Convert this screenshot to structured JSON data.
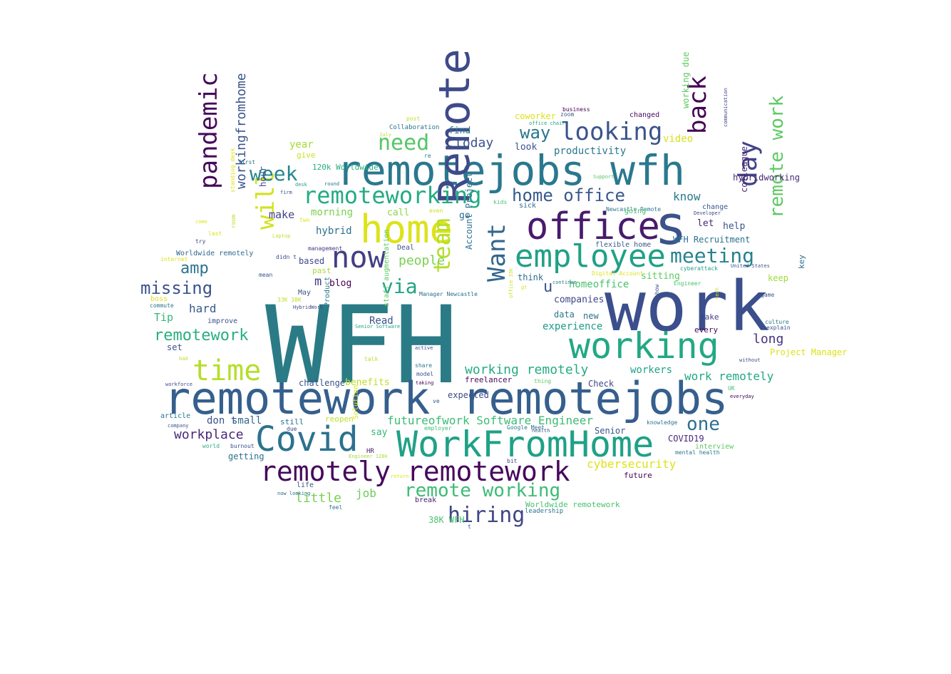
{
  "wordcloud": {
    "words": [
      {
        "text": "WFH",
        "color": "#2a7b86"
      },
      {
        "text": "work",
        "color": "#3b4f8c"
      },
      {
        "text": "remotework",
        "color": "#355f8d"
      },
      {
        "text": "remotejobs",
        "color": "#355f8d"
      },
      {
        "text": "remotejobs wfh",
        "color": "#2a788e"
      },
      {
        "text": "WorkFromHome",
        "color": "#1fa187"
      },
      {
        "text": "home",
        "color": "#dce319"
      },
      {
        "text": "Remote",
        "color": "#3e4a89"
      },
      {
        "text": "office",
        "color": "#481a6c"
      },
      {
        "text": "s",
        "color": "#3b528b"
      },
      {
        "text": "employee",
        "color": "#1fa187"
      },
      {
        "text": "working",
        "color": "#22a884"
      },
      {
        "text": "Covid",
        "color": "#2c728e"
      },
      {
        "text": "remotely remotework",
        "color": "#46085c"
      },
      {
        "text": "time",
        "color": "#b5de2b"
      },
      {
        "text": "now",
        "color": "#433e85"
      },
      {
        "text": "pandemic",
        "color": "#46095c"
      },
      {
        "text": "will",
        "color": "#d2e21b"
      },
      {
        "text": "back",
        "color": "#440154"
      },
      {
        "text": "day",
        "color": "#414487"
      },
      {
        "text": "remoteworking",
        "color": "#25ab82"
      },
      {
        "text": "looking",
        "color": "#3a548c"
      },
      {
        "text": "need",
        "color": "#56c667"
      },
      {
        "text": "Want",
        "color": "#31678e"
      },
      {
        "text": "team",
        "color": "#b5de2b"
      },
      {
        "text": "meeting",
        "color": "#26828e"
      },
      {
        "text": "remote working",
        "color": "#3dbc74"
      },
      {
        "text": "hiring",
        "color": "#3f4788"
      },
      {
        "text": "via",
        "color": "#20a386"
      },
      {
        "text": "missing",
        "color": "#3b528b"
      },
      {
        "text": "week",
        "color": "#24868e"
      },
      {
        "text": "amp",
        "color": "#2c728e"
      },
      {
        "text": "remote work",
        "color": "#5ec962"
      },
      {
        "text": "home office",
        "color": "#38598c"
      },
      {
        "text": "remotework",
        "color": "#29af7f"
      },
      {
        "text": "one",
        "color": "#2d708e"
      },
      {
        "text": "workingfromhome",
        "color": "#3a548c"
      },
      {
        "text": "way",
        "color": "#2a768e"
      },
      {
        "text": "working remotely",
        "color": "#25ab82"
      },
      {
        "text": "futureofwork Software Engineer",
        "color": "#3dbc74"
      },
      {
        "text": "u",
        "color": "#3b528b"
      },
      {
        "text": "workplace",
        "color": "#482878"
      },
      {
        "text": "cybersecurity",
        "color": "#dde318"
      },
      {
        "text": "little",
        "color": "#7ad151"
      },
      {
        "text": "people",
        "color": "#7ad151"
      },
      {
        "text": "know",
        "color": "#2a788e"
      },
      {
        "text": "long",
        "color": "#46327e"
      },
      {
        "text": "work remotely",
        "color": "#22a884"
      },
      {
        "text": "today",
        "color": "#3a548c"
      },
      {
        "text": "job",
        "color": "#6ccd5a"
      },
      {
        "text": "hard",
        "color": "#38598c"
      },
      {
        "text": "productivity",
        "color": "#2a788e"
      },
      {
        "text": "year",
        "color": "#a5db36"
      },
      {
        "text": "homeoffice",
        "color": "#4ac16d"
      },
      {
        "text": "make",
        "color": "#414487"
      },
      {
        "text": "workers",
        "color": "#20a386"
      },
      {
        "text": "hybrid",
        "color": "#2c728e"
      },
      {
        "text": "morning",
        "color": "#7ad151"
      },
      {
        "text": "don t",
        "color": "#3b528b"
      },
      {
        "text": "small",
        "color": "#31688e"
      },
      {
        "text": "experience",
        "color": "#1e9b8a"
      },
      {
        "text": "Tip",
        "color": "#35b779"
      },
      {
        "text": "call",
        "color": "#8bd646"
      },
      {
        "text": "Read",
        "color": "#3b528b"
      },
      {
        "text": "blog",
        "color": "#440154"
      },
      {
        "text": "m",
        "color": "#443b84"
      },
      {
        "text": "Check",
        "color": "#3e4989"
      },
      {
        "text": "help",
        "color": "#3a548c"
      },
      {
        "text": "find",
        "color": "#2a768e"
      },
      {
        "text": "companies",
        "color": "#3f4788"
      },
      {
        "text": "say",
        "color": "#35b779"
      },
      {
        "text": "Senior",
        "color": "#3b528b"
      },
      {
        "text": "go",
        "color": "#31688e"
      },
      {
        "text": "benefits",
        "color": "#bddf26"
      },
      {
        "text": "future",
        "color": "#440154"
      },
      {
        "text": "COVID19",
        "color": "#482878"
      },
      {
        "text": "let",
        "color": "#482878"
      },
      {
        "text": "keep",
        "color": "#a0da39"
      },
      {
        "text": "freelancer",
        "color": "#46085c"
      },
      {
        "text": "think",
        "color": "#2e6e8e"
      },
      {
        "text": "hour",
        "color": "#3e4a89"
      },
      {
        "text": "give",
        "color": "#c8e020"
      },
      {
        "text": "120k Worldwide",
        "color": "#29af7f"
      },
      {
        "text": "post",
        "color": "#bddf26"
      },
      {
        "text": "Collaboration",
        "color": "#2c728e"
      },
      {
        "text": "July",
        "color": "#bddf26"
      },
      {
        "text": "coworker",
        "color": "#dde318"
      },
      {
        "text": "business",
        "color": "#440154"
      },
      {
        "text": "zoom",
        "color": "#3a548c"
      },
      {
        "text": "office chair",
        "color": "#20a386"
      },
      {
        "text": "changed",
        "color": "#46075a"
      },
      {
        "text": "working due",
        "color": "#5ec962"
      },
      {
        "text": "video",
        "color": "#d8e219"
      },
      {
        "text": "look",
        "color": "#3a548c"
      },
      {
        "text": "re",
        "color": "#26828e"
      },
      {
        "text": "first",
        "color": "#2c728e"
      },
      {
        "text": "communication",
        "color": "#3f4788"
      },
      {
        "text": "hybridworking",
        "color": "#482878"
      },
      {
        "text": "Support",
        "color": "#56c667"
      },
      {
        "text": "desk",
        "color": "#1f9e89"
      },
      {
        "text": "round",
        "color": "#2a788e"
      },
      {
        "text": "firm",
        "color": "#3b528b"
      },
      {
        "text": "kids",
        "color": "#4ac16d"
      },
      {
        "text": "sick",
        "color": "#31688e"
      },
      {
        "text": "Newcastle Remote",
        "color": "#2a788e"
      },
      {
        "text": "going",
        "color": "#4ac16d"
      },
      {
        "text": "change",
        "color": "#38598c"
      },
      {
        "text": "Developer",
        "color": "#3e4a89"
      },
      {
        "text": "colleague",
        "color": "#482878"
      },
      {
        "text": "even",
        "color": "#c8e020"
      },
      {
        "text": "two",
        "color": "#dde318"
      },
      {
        "text": "standing desk",
        "color": "#dde318"
      },
      {
        "text": "come",
        "color": "#dde318"
      },
      {
        "text": "last",
        "color": "#dde318"
      },
      {
        "text": "try",
        "color": "#3e4a89"
      },
      {
        "text": "Laptop",
        "color": "#bddf26"
      },
      {
        "text": "room",
        "color": "#b5de2b"
      },
      {
        "text": "Worldwide remotely",
        "color": "#31688e"
      },
      {
        "text": "internet",
        "color": "#dde318"
      },
      {
        "text": "management",
        "color": "#443a83"
      },
      {
        "text": "didn t",
        "color": "#3e4a89"
      },
      {
        "text": "Deal",
        "color": "#3a548c"
      },
      {
        "text": "flexible home",
        "color": "#38598c"
      },
      {
        "text": "WFH Recruitment",
        "color": "#2c728e"
      },
      {
        "text": "cyberattack",
        "color": "#1fa187"
      },
      {
        "text": "United States",
        "color": "#3a548c"
      },
      {
        "text": "mean",
        "color": "#3b528b"
      },
      {
        "text": "based",
        "color": "#3e4a89"
      },
      {
        "text": "past",
        "color": "#a5db36"
      },
      {
        "text": "Digital Account",
        "color": "#dde318"
      },
      {
        "text": "sitting",
        "color": "#5ec962"
      },
      {
        "text": "Engineer",
        "color": "#4ac16d"
      },
      {
        "text": "boss",
        "color": "#dde318"
      },
      {
        "text": "33K 38K",
        "color": "#bddf26"
      },
      {
        "text": "May",
        "color": "#3b528b"
      },
      {
        "text": "Manager Newcastle",
        "color": "#2c728e"
      },
      {
        "text": "continue",
        "color": "#2a788e"
      },
      {
        "text": "gt",
        "color": "#dde318"
      },
      {
        "text": "game",
        "color": "#3b528b"
      },
      {
        "text": "commute",
        "color": "#2a788e"
      },
      {
        "text": "HybridWork",
        "color": "#3f4788"
      },
      {
        "text": "improve",
        "color": "#3b528b"
      },
      {
        "text": "Product",
        "color": "#2a788e"
      },
      {
        "text": "Account Project",
        "color": "#2c728e"
      },
      {
        "text": "staff augmentation",
        "color": "#5ec962"
      },
      {
        "text": "office 33K",
        "color": "#c8e020"
      },
      {
        "text": "show",
        "color": "#3b528b"
      },
      {
        "text": "data",
        "color": "#2a788e"
      },
      {
        "text": "new",
        "color": "#2c728e"
      },
      {
        "text": "take",
        "color": "#443a83"
      },
      {
        "text": "tech",
        "color": "#c8e020"
      },
      {
        "text": "culture",
        "color": "#2a788e"
      },
      {
        "text": "explain",
        "color": "#3b528b"
      },
      {
        "text": "every",
        "color": "#46085c"
      },
      {
        "text": "key",
        "color": "#2c728e"
      },
      {
        "text": "Senior Software",
        "color": "#20a386"
      },
      {
        "text": "set",
        "color": "#3a548c"
      },
      {
        "text": "Project Manager",
        "color": "#dde318"
      },
      {
        "text": "bad",
        "color": "#bddf26"
      },
      {
        "text": "talk",
        "color": "#b5de2b"
      },
      {
        "text": "active",
        "color": "#3f4788"
      },
      {
        "text": "without",
        "color": "#3e4a89"
      },
      {
        "text": "share",
        "color": "#2a788e"
      },
      {
        "text": "model",
        "color": "#3b528b"
      },
      {
        "text": "taking",
        "color": "#440154"
      },
      {
        "text": "thing",
        "color": "#5ec962"
      },
      {
        "text": "workforce",
        "color": "#3e4a89"
      },
      {
        "text": "challenge",
        "color": "#3b528b"
      },
      {
        "text": "UK",
        "color": "#3dbc74"
      },
      {
        "text": "everyday",
        "color": "#440154"
      },
      {
        "text": "expected",
        "color": "#3e4a89"
      },
      {
        "text": "ve",
        "color": "#3b528b"
      },
      {
        "text": "article",
        "color": "#2a788e"
      },
      {
        "text": "company",
        "color": "#3b528b"
      },
      {
        "text": "reopen",
        "color": "#bddf26"
      },
      {
        "text": "still",
        "color": "#2c728e"
      },
      {
        "text": "due",
        "color": "#414487"
      },
      {
        "text": "Solution",
        "color": "#dde318"
      },
      {
        "text": "employer",
        "color": "#3dbc74"
      },
      {
        "text": "Google Meet",
        "color": "#2a788e"
      },
      {
        "text": "health",
        "color": "#3b528b"
      },
      {
        "text": "knowledge",
        "color": "#2c728e"
      },
      {
        "text": "interview",
        "color": "#5ec962"
      },
      {
        "text": "world",
        "color": "#29af7f"
      },
      {
        "text": "burnout",
        "color": "#3b528b"
      },
      {
        "text": "HR",
        "color": "#481a6c"
      },
      {
        "text": "getting",
        "color": "#2c728e"
      },
      {
        "text": "Engineer 120k",
        "color": "#a5db36"
      },
      {
        "text": "bit",
        "color": "#3e4a89"
      },
      {
        "text": "mental health",
        "color": "#2a788e"
      },
      {
        "text": "return",
        "color": "#dde318"
      },
      {
        "text": "life",
        "color": "#3b528b"
      },
      {
        "text": "now looking",
        "color": "#2c728e"
      },
      {
        "text": "break",
        "color": "#481a6c"
      },
      {
        "text": "Worldwide remotework",
        "color": "#4ac16d"
      },
      {
        "text": "feel",
        "color": "#2c728e"
      },
      {
        "text": "leadership",
        "color": "#2c728e"
      },
      {
        "text": "38K WFH",
        "color": "#4ac16d"
      },
      {
        "text": "t",
        "color": "#3a548c"
      },
      {
        "text": "start",
        "color": "#5ec962"
      }
    ]
  }
}
